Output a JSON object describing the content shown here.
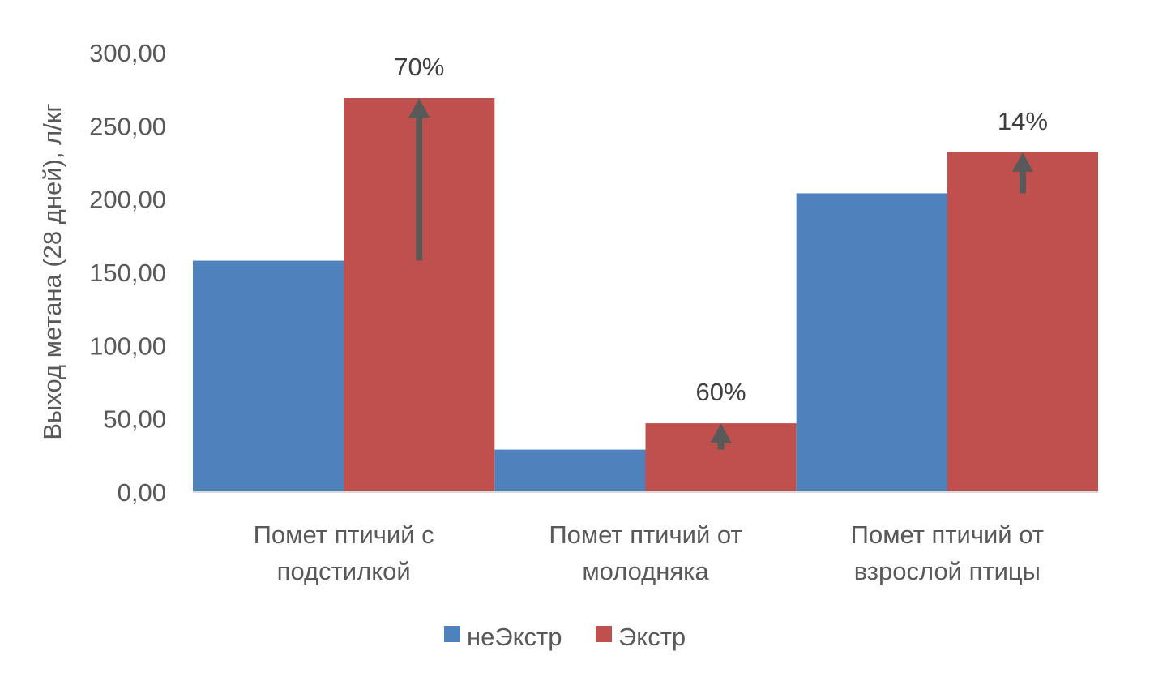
{
  "colors": {
    "neekstr": "#4f81bd",
    "ekstr": "#c0504d",
    "axis": "#d9d9d9",
    "arrow": "#595959",
    "text": "#595959"
  },
  "chart_data": {
    "type": "bar",
    "ylabel": "Выход метана (28 дней), л/кг",
    "ylim": [
      0,
      300
    ],
    "yticks": [
      "0,00",
      "50,00",
      "100,00",
      "150,00",
      "200,00",
      "250,00",
      "300,00"
    ],
    "grid": false,
    "legend": "bottom",
    "categories": [
      [
        "Помет птичий с",
        "подстилкой"
      ],
      [
        "Помет птичий от",
        "молодняка"
      ],
      [
        "Помет птичий от",
        "взрослой птицы"
      ]
    ],
    "series": [
      {
        "name": "неЭкстр",
        "color": "#4f81bd",
        "values": [
          158,
          29,
          204
        ]
      },
      {
        "name": "Экстр",
        "color": "#c0504d",
        "values": [
          269,
          47,
          232
        ]
      }
    ],
    "annotations": [
      "70%",
      "60%",
      "14%"
    ]
  }
}
